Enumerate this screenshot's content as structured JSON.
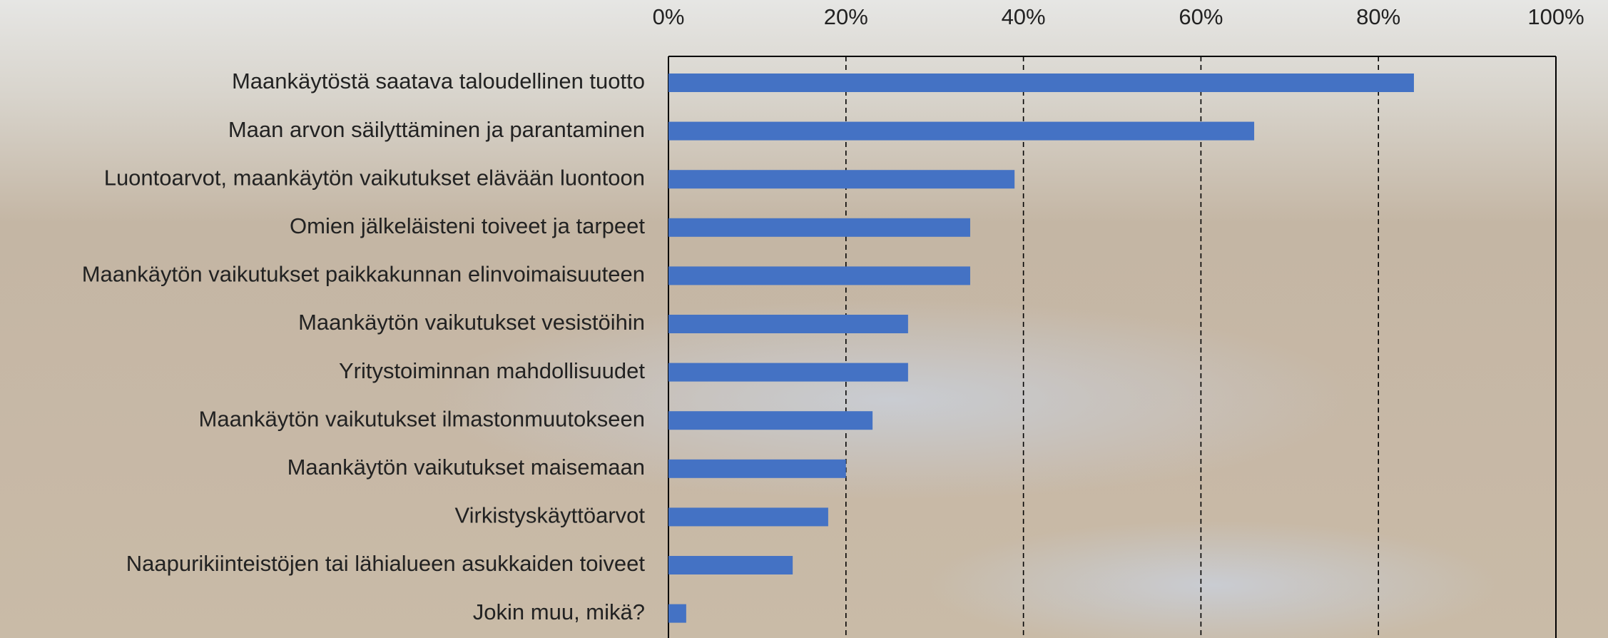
{
  "chart_data": {
    "type": "bar",
    "orientation": "horizontal",
    "categories": [
      "Maankäytöstä saatava taloudellinen tuotto",
      "Maan arvon säilyttäminen ja parantaminen",
      "Luontoarvot, maankäytön vaikutukset elävään luontoon",
      "Omien jälkeläisteni toiveet ja tarpeet",
      "Maankäytön vaikutukset paikkakunnan elinvoimaisuuteen",
      "Maankäytön vaikutukset vesistöihin",
      "Yritystoiminnan mahdollisuudet",
      "Maankäytön vaikutukset ilmastonmuutokseen",
      "Maankäytön vaikutukset maisemaan",
      "Virkistyskäyttöarvot",
      "Naapurikiinteistöjen tai lähialueen asukkaiden toiveet",
      "Jokin muu, mikä?"
    ],
    "values": [
      84,
      66,
      39,
      34,
      34,
      27,
      27,
      23,
      20,
      18,
      14,
      2
    ],
    "color": "#4472c4",
    "xlim": [
      0,
      100
    ],
    "xticks": [
      {
        "value": 0,
        "label": "0%"
      },
      {
        "value": 20,
        "label": "20%"
      },
      {
        "value": 40,
        "label": "40%"
      },
      {
        "value": 60,
        "label": "60%"
      },
      {
        "value": 80,
        "label": "80%"
      },
      {
        "value": 100,
        "label": "100%"
      }
    ],
    "grid": true
  }
}
